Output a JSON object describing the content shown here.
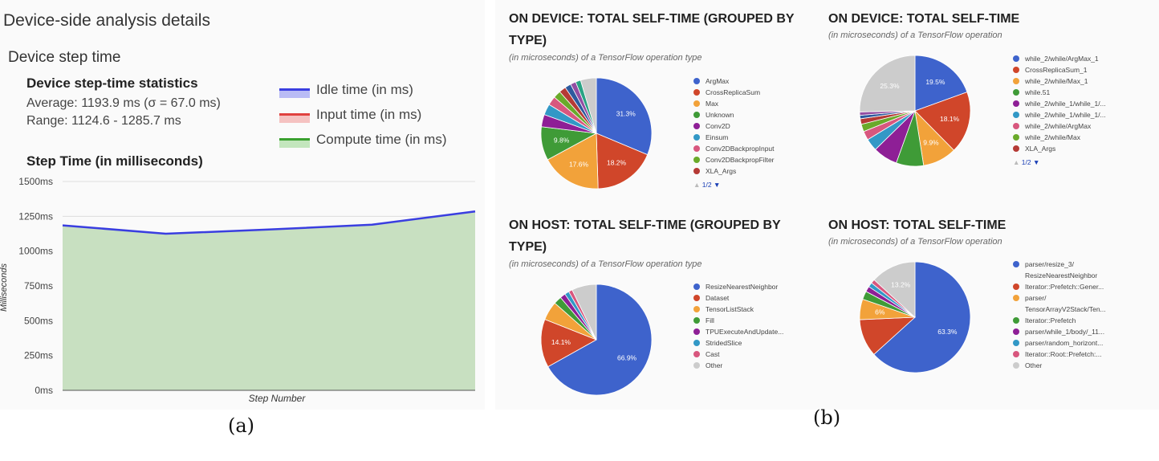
{
  "panel_a": {
    "section_title": "Device-side analysis details",
    "subsection_title": "Device step time",
    "stats": {
      "title": "Device step-time statistics",
      "average": "Average: 1193.9 ms (σ = 67.0 ms)",
      "range": "Range: 1124.6 - 1285.7 ms"
    },
    "legend": [
      {
        "label": "Idle time (in ms)",
        "color": "#3a3ee0",
        "fill": "#b9bbf5"
      },
      {
        "label": "Input time (in ms)",
        "color": "#e0413f",
        "fill": "#f5c2c1"
      },
      {
        "label": "Compute time (in ms)",
        "color": "#3aa02f",
        "fill": "#c3e6bd"
      }
    ],
    "chart_title": "Step Time (in milliseconds)"
  },
  "chart_data": [
    {
      "type": "area",
      "title": "Step Time (in milliseconds)",
      "xlabel": "Step Number",
      "ylabel": "Milliseconds",
      "ylim": [
        0,
        1500
      ],
      "yticks": [
        "0ms",
        "250ms",
        "500ms",
        "750ms",
        "1000ms",
        "1250ms",
        "1500ms"
      ],
      "x": [
        0,
        1,
        2,
        3,
        4
      ],
      "series": [
        {
          "name": "Idle time (in ms)",
          "values": [
            1185,
            1125,
            1155,
            1190,
            1285
          ]
        }
      ],
      "area_fill": "#c8e0c1",
      "grid": true
    },
    {
      "type": "pie",
      "title": "ON DEVICE: TOTAL SELF-TIME (GROUPED BY TYPE)",
      "subtitle": "(in microseconds) of a TensorFlow operation type",
      "slices": [
        {
          "label": "ArgMax",
          "value": 31.3,
          "color": "#3e63cc",
          "show_label": "31.3%"
        },
        {
          "label": "CrossReplicaSum",
          "value": 18.2,
          "color": "#d0462a",
          "show_label": "18.2%"
        },
        {
          "label": "Max",
          "value": 17.6,
          "color": "#f2a23a",
          "show_label": "17.6%"
        },
        {
          "label": "Unknown",
          "value": 9.8,
          "color": "#3f9b37",
          "show_label": "9.8%"
        },
        {
          "label": "Conv2D",
          "value": 3.6,
          "color": "#8e1f96",
          "show_label": ""
        },
        {
          "label": "Einsum",
          "value": 3.2,
          "color": "#3298c6",
          "show_label": ""
        },
        {
          "label": "Conv2DBackpropInput",
          "value": 2.6,
          "color": "#d8577e",
          "show_label": ""
        },
        {
          "label": "Conv2DBackpropFilter",
          "value": 2.2,
          "color": "#6aaa2a",
          "show_label": ""
        },
        {
          "label": "XLA_Args",
          "value": 2.0,
          "color": "#b53a35",
          "show_label": ""
        },
        {
          "label": "",
          "value": 1.8,
          "color": "#2d5a9e",
          "show_label": ""
        },
        {
          "label": "",
          "value": 1.6,
          "color": "#934ea2",
          "show_label": ""
        },
        {
          "label": "",
          "value": 1.5,
          "color": "#29a384",
          "show_label": ""
        },
        {
          "label": "",
          "value": 4.6,
          "color": "#cccccc",
          "show_label": ""
        }
      ],
      "legend_count": 9,
      "pager": "1/2"
    },
    {
      "type": "pie",
      "title": "ON DEVICE: TOTAL SELF-TIME",
      "subtitle": "(in microseconds) of a TensorFlow operation",
      "slices": [
        {
          "label": "while_2/while/ArgMax_1",
          "value": 19.5,
          "color": "#3e63cc",
          "show_label": "19.5%"
        },
        {
          "label": "CrossReplicaSum_1",
          "value": 18.1,
          "color": "#d0462a",
          "show_label": "18.1%"
        },
        {
          "label": "while_2/while/Max_1",
          "value": 9.9,
          "color": "#f2a23a",
          "show_label": "9.9%"
        },
        {
          "label": "while.51",
          "value": 8.0,
          "color": "#3f9b37",
          "show_label": ""
        },
        {
          "label": "while_2/while_1/while_1/...",
          "value": 7.2,
          "color": "#8e1f96",
          "show_label": ""
        },
        {
          "label": "while_2/while_1/while_1/...",
          "value": 3.6,
          "color": "#3298c6",
          "show_label": ""
        },
        {
          "label": "while_2/while/ArgMax",
          "value": 2.6,
          "color": "#d8577e",
          "show_label": ""
        },
        {
          "label": "while_2/while/Max",
          "value": 2.2,
          "color": "#6aaa2a",
          "show_label": ""
        },
        {
          "label": "XLA_Args",
          "value": 1.6,
          "color": "#b53a35",
          "show_label": ""
        },
        {
          "label": "",
          "value": 1.0,
          "color": "#2d5a9e",
          "show_label": ""
        },
        {
          "label": "",
          "value": 1.0,
          "color": "#934ea2",
          "show_label": ""
        },
        {
          "label": "",
          "value": 25.3,
          "color": "#cccccc",
          "show_label": "25.3%"
        }
      ],
      "legend_count": 9,
      "pager": "1/2"
    },
    {
      "type": "pie",
      "title": "ON HOST: TOTAL SELF-TIME (GROUPED BY TYPE)",
      "subtitle": "(in microseconds) of a TensorFlow operation type",
      "slices": [
        {
          "label": "ResizeNearestNeighbor",
          "value": 66.9,
          "color": "#3e63cc",
          "show_label": "66.9%"
        },
        {
          "label": "Dataset",
          "value": 14.1,
          "color": "#d0462a",
          "show_label": "14.1%"
        },
        {
          "label": "TensorListStack",
          "value": 5.5,
          "color": "#f2a23a",
          "show_label": ""
        },
        {
          "label": "Fill",
          "value": 2.3,
          "color": "#3f9b37",
          "show_label": ""
        },
        {
          "label": "TPUExecuteAndUpdate...",
          "value": 1.6,
          "color": "#8e1f96",
          "show_label": ""
        },
        {
          "label": "StridedSlice",
          "value": 1.3,
          "color": "#3298c6",
          "show_label": ""
        },
        {
          "label": "Cast",
          "value": 1.1,
          "color": "#d8577e",
          "show_label": ""
        },
        {
          "label": "Other",
          "value": 7.2,
          "color": "#cccccc",
          "show_label": ""
        }
      ],
      "legend_count": 8,
      "pager": ""
    },
    {
      "type": "pie",
      "title": "ON HOST: TOTAL SELF-TIME",
      "subtitle": "(in microseconds) of a TensorFlow operation",
      "slices": [
        {
          "label": "parser/resize_3/\nResizeNearestNeighbor",
          "value": 63.3,
          "color": "#3e63cc",
          "show_label": "63.3%"
        },
        {
          "label": "Iterator::Prefetch::Gener...",
          "value": 11.0,
          "color": "#d0462a",
          "show_label": ""
        },
        {
          "label": "parser/\nTensorArrayV2Stack/Ten...",
          "value": 6.0,
          "color": "#f2a23a",
          "show_label": "6%"
        },
        {
          "label": "Iterator::Prefetch",
          "value": 2.4,
          "color": "#3f9b37",
          "show_label": ""
        },
        {
          "label": "parser/while_1/body/_11...",
          "value": 1.6,
          "color": "#8e1f96",
          "show_label": ""
        },
        {
          "label": "parser/random_horizont...",
          "value": 1.3,
          "color": "#3298c6",
          "show_label": ""
        },
        {
          "label": "Iterator::Root::Prefetch:...",
          "value": 1.2,
          "color": "#d8577e",
          "show_label": ""
        },
        {
          "label": "Other",
          "value": 13.2,
          "color": "#cccccc",
          "show_label": "13.2%"
        }
      ],
      "legend_count": 8,
      "pager": ""
    }
  ],
  "captions": {
    "a": "(a)",
    "b": "(b)"
  }
}
